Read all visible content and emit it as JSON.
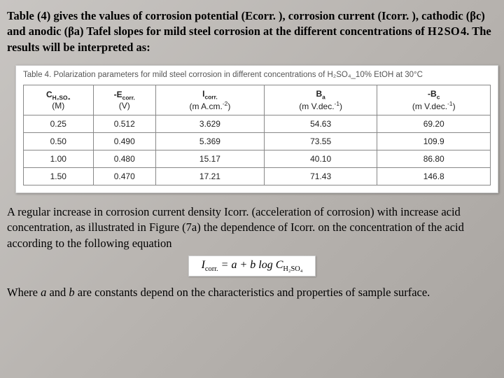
{
  "intro_para": "Table (4) gives the values of corrosion potential (Ecorr. ), corrosion current (Icorr. ), cathodic (βc) and anodic (βa) Tafel slopes for mild steel corrosion at the different concentrations of H 2 SO 4. The results will be interpreted as:",
  "table": {
    "caption_prefix": "Table 4.",
    "caption_body": "Polarization parameters for mild steel corrosion in different concentrations of H₂SO₄_10% EtOH at 30°C",
    "columns": {
      "c1_html": "C<span class='sub'>H₂SO₄</span>",
      "c1_unit": "(M)",
      "c2_html": "-E<span class='sub'>corr.</span>",
      "c2_unit": "(V)",
      "c3_html": "I<span class='sub'>corr.</span>",
      "c3_unit": "(m A.cm.<span class='sup'>-2</span>)",
      "c4_html": "B<span class='sub'>a</span>",
      "c4_unit": "(m V.dec.<span class='sup'>-1</span>)",
      "c5_html": "-B<span class='sub'>c</span>",
      "c5_unit": "(m V.dec.<span class='sup'>-1</span>)"
    },
    "rows": [
      {
        "m": "0.25",
        "ecorr": "0.512",
        "icorr": "3.629",
        "ba": "54.63",
        "bc": "69.20"
      },
      {
        "m": "0.50",
        "ecorr": "0.490",
        "icorr": "5.369",
        "ba": "73.55",
        "bc": "109.9"
      },
      {
        "m": "1.00",
        "ecorr": "0.480",
        "icorr": "15.17",
        "ba": "40.10",
        "bc": "86.80"
      },
      {
        "m": "1.50",
        "ecorr": "0.470",
        "icorr": "17.21",
        "ba": "71.43",
        "bc": "146.8"
      }
    ]
  },
  "mid_para": "A regular increase in corrosion current density Icorr. (acceleration of corrosion) with increase acid concentration, as illustrated in Figure (7a) the dependence of Icorr. on the concentration of the acid according to the following equation",
  "equation_html": "I<span class='eq-sub'>corr.</span> = a + b log C<span class='eq-sub'>H₂SO₄</span>",
  "closing_pre": "Where ",
  "closing_a": "a",
  "closing_mid1": " and ",
  "closing_b": "b",
  "closing_post": " are constants depend on the characteristics and properties of sample surface."
}
